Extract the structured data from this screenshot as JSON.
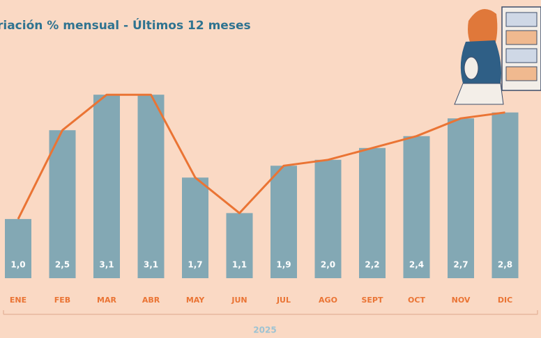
{
  "chart_data": {
    "type": "bar",
    "title": "riación % mensual - Últimos 12 meses",
    "categories": [
      "ENE",
      "FEB",
      "MAR",
      "ABR",
      "MAY",
      "JUN",
      "JUL",
      "AGO",
      "SEPT",
      "OCT",
      "NOV",
      "DIC"
    ],
    "values": [
      1.0,
      2.5,
      3.1,
      3.1,
      1.7,
      1.1,
      1.9,
      2.0,
      2.2,
      2.4,
      2.7,
      2.8
    ],
    "value_labels": [
      "1,0",
      "2,5",
      "3,1",
      "3,1",
      "1,7",
      "1,1",
      "1,9",
      "2,0",
      "2,2",
      "2,4",
      "2,7",
      "2,8"
    ],
    "color": "#83a8b4",
    "line_color": "#ea7434",
    "ylim": [
      0,
      4.7
    ],
    "group_label": "2025"
  }
}
